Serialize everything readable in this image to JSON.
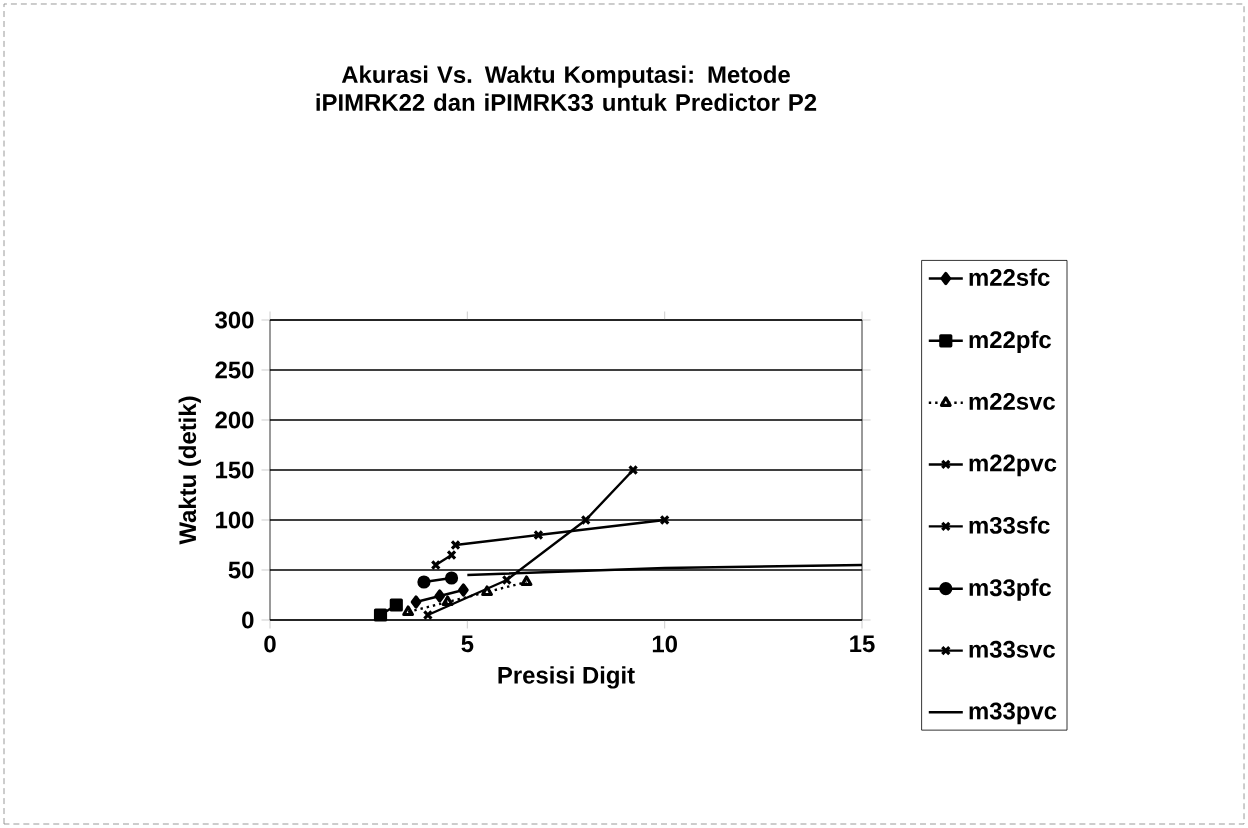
{
  "chart_data": {
    "type": "line",
    "title": "Akurasi Vs. Waktu Komputasi:  Metode iPIMRK22 dan iPIMRK33 untuk Predictor P2",
    "xlabel": "Presisi Digit",
    "ylabel": "Waktu (detik)",
    "xlim": [
      0,
      15
    ],
    "ylim": [
      0,
      300
    ],
    "xticks": [
      0,
      5,
      10,
      15
    ],
    "yticks": [
      0,
      50,
      100,
      150,
      200,
      250,
      300
    ],
    "grid": "y",
    "legend": "right",
    "series": [
      {
        "name": "m22sfc",
        "color": "#000000",
        "marker": "diamond",
        "x": [
          3.7,
          4.3,
          4.9
        ],
        "values": [
          18,
          24,
          30
        ]
      },
      {
        "name": "m22pfc",
        "color": "#000000",
        "marker": "square",
        "x": [
          2.8,
          3.2
        ],
        "values": [
          5,
          15
        ]
      },
      {
        "name": "m22svc",
        "color": "#000000",
        "marker": "triangle",
        "line_style": "dotted",
        "x": [
          3.5,
          4.5,
          5.5,
          6.5
        ],
        "values": [
          8,
          18,
          28,
          38
        ]
      },
      {
        "name": "m22pvc",
        "color": "#000000",
        "marker": "cross",
        "x": [
          4,
          6,
          8,
          9.2
        ],
        "values": [
          5,
          40,
          100,
          150
        ]
      },
      {
        "name": "m33sfc",
        "color": "#000000",
        "marker": "cross",
        "x": [
          4.2,
          4.6
        ],
        "values": [
          55,
          65
        ]
      },
      {
        "name": "m33pfc",
        "color": "#000000",
        "marker": "circle",
        "x": [
          3.9,
          4.6
        ],
        "values": [
          38,
          42
        ]
      },
      {
        "name": "m33svc",
        "color": "#000000",
        "marker": "cross",
        "x": [
          4.7,
          6.8,
          10
        ],
        "values": [
          75,
          85,
          100
        ]
      },
      {
        "name": "m33pvc",
        "color": "#000000",
        "marker": "none",
        "x": [
          5,
          10,
          15
        ],
        "values": [
          45,
          52,
          55
        ]
      }
    ]
  }
}
